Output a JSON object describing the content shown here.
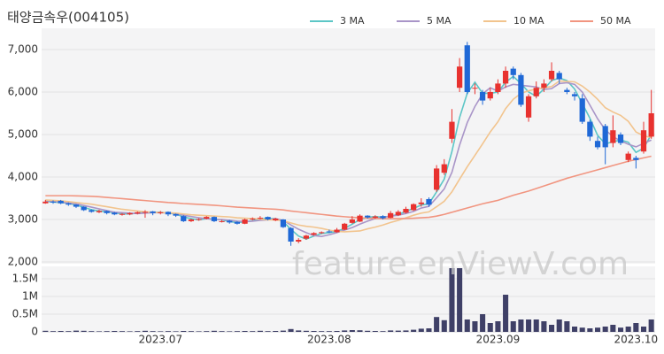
{
  "chart_data": {
    "type": "candlestick",
    "title": "태양금속우(004105)",
    "watermark": "feature.enViewV.com",
    "categories": [
      null,
      null,
      null,
      null,
      null,
      null,
      null,
      null,
      null,
      null,
      null,
      null,
      null,
      null,
      null,
      "2023.07",
      null,
      null,
      null,
      null,
      null,
      null,
      null,
      null,
      null,
      null,
      null,
      null,
      null,
      null,
      null,
      null,
      null,
      null,
      null,
      null,
      null,
      "2023.08",
      null,
      null,
      null,
      null,
      null,
      null,
      null,
      null,
      null,
      null,
      null,
      null,
      null,
      null,
      null,
      null,
      null,
      null,
      null,
      null,
      null,
      "2023.09",
      null,
      null,
      null,
      null,
      null,
      null,
      null,
      null,
      null,
      null,
      null,
      null,
      null,
      null,
      null,
      null,
      null,
      "2023.10",
      null,
      null
    ],
    "open": [
      3380,
      3420,
      3440,
      3380,
      3350,
      3300,
      3220,
      3170,
      3200,
      3160,
      3110,
      3120,
      3140,
      3160,
      3190,
      3150,
      3180,
      3130,
      3080,
      2960,
      2990,
      3020,
      3060,
      2950,
      2970,
      2940,
      2900,
      3000,
      3020,
      3060,
      2980,
      3000,
      2800,
      2480,
      2550,
      2640,
      2690,
      2720,
      2700,
      2760,
      2920,
      2950,
      3090,
      3040,
      3080,
      3040,
      3100,
      3160,
      3220,
      3360,
      3480,
      3700,
      4100,
      4900,
      6100,
      7100,
      6100,
      6000,
      5850,
      6000,
      6200,
      6550,
      6400,
      5400,
      5900,
      6100,
      6300,
      6450,
      6050,
      5950,
      5850,
      5300,
      4850,
      5200,
      4800,
      5000,
      4400,
      4450,
      4600,
      4950
    ],
    "high": [
      3460,
      3450,
      3460,
      3400,
      3360,
      3310,
      3240,
      3230,
      3210,
      3180,
      3150,
      3170,
      3190,
      3220,
      3200,
      3200,
      3190,
      3140,
      3100,
      3020,
      3030,
      3080,
      3070,
      2990,
      2990,
      2960,
      3020,
      3050,
      3080,
      3070,
      3040,
      3010,
      2820,
      2560,
      2640,
      2700,
      2720,
      2760,
      2800,
      2920,
      3080,
      3120,
      3100,
      3100,
      3100,
      3200,
      3220,
      3300,
      3380,
      3500,
      3520,
      4280,
      4420,
      5600,
      6800,
      7180,
      6200,
      6050,
      6100,
      6300,
      6600,
      6600,
      6450,
      5950,
      6250,
      6300,
      6700,
      6500,
      6100,
      6000,
      5950,
      5350,
      4950,
      5250,
      5450,
      5050,
      4600,
      4500,
      5300,
      6050
    ],
    "low": [
      3370,
      3370,
      3360,
      3320,
      3270,
      3200,
      3160,
      3150,
      3120,
      3100,
      3090,
      3100,
      3120,
      3040,
      3100,
      3120,
      3080,
      3060,
      2940,
      2940,
      2970,
      3000,
      2940,
      2930,
      2900,
      2880,
      2890,
      2980,
      3000,
      2980,
      2960,
      2800,
      2380,
      2440,
      2520,
      2620,
      2660,
      2680,
      2690,
      2750,
      2900,
      2940,
      3020,
      3020,
      3000,
      3030,
      3080,
      3140,
      3200,
      3300,
      3300,
      3650,
      4050,
      4800,
      6000,
      5950,
      5950,
      5700,
      5800,
      5950,
      6100,
      6300,
      5650,
      5300,
      5850,
      6000,
      6250,
      6200,
      5950,
      5800,
      5250,
      4850,
      4650,
      4300,
      4700,
      4750,
      4350,
      4200,
      4550,
      4900
    ],
    "close": [
      3420,
      3400,
      3380,
      3350,
      3300,
      3220,
      3180,
      3200,
      3150,
      3120,
      3130,
      3150,
      3170,
      3180,
      3150,
      3170,
      3120,
      3090,
      2960,
      3000,
      3010,
      3060,
      2960,
      2960,
      2930,
      2900,
      3000,
      3020,
      3040,
      3000,
      3020,
      2820,
      2480,
      2520,
      2620,
      2680,
      2700,
      2700,
      2760,
      2900,
      3000,
      3090,
      3050,
      3070,
      3030,
      3150,
      3180,
      3250,
      3360,
      3400,
      3350,
      4200,
      4300,
      5300,
      6600,
      6000,
      6100,
      5800,
      6000,
      6200,
      6500,
      6400,
      5700,
      5900,
      6100,
      6200,
      6500,
      6300,
      6000,
      5900,
      5300,
      4950,
      4700,
      4700,
      5100,
      4800,
      4550,
      4400,
      5100,
      5500
    ],
    "up_color": "#e8322f",
    "down_color": "#1f68d6",
    "series": [
      {
        "name": "3 MA",
        "color": "#5cc6c6",
        "values": [
          3430,
          3410,
          3400,
          3380,
          3340,
          3290,
          3230,
          3200,
          3180,
          3160,
          3130,
          3130,
          3150,
          3170,
          3170,
          3170,
          3150,
          3130,
          3060,
          3020,
          2990,
          3020,
          3010,
          2990,
          2950,
          2930,
          2940,
          2970,
          3020,
          3020,
          3020,
          2950,
          2770,
          2610,
          2540,
          2610,
          2670,
          2690,
          2720,
          2790,
          2890,
          3000,
          3050,
          3070,
          3050,
          3080,
          3120,
          3190,
          3260,
          3340,
          3370,
          3650,
          3950,
          4600,
          5400,
          5970,
          6230,
          5970,
          5970,
          6000,
          6230,
          6370,
          6200,
          6000,
          5900,
          6070,
          6270,
          6330,
          6270,
          6070,
          5730,
          5380,
          4980,
          4780,
          4830,
          4870,
          4820,
          4580,
          4680,
          5000
        ]
      },
      {
        "name": "5 MA",
        "color": "#a995c8",
        "values": [
          3440,
          3430,
          3410,
          3390,
          3370,
          3330,
          3290,
          3250,
          3210,
          3170,
          3160,
          3150,
          3140,
          3150,
          3160,
          3160,
          3160,
          3140,
          3100,
          3070,
          3040,
          3020,
          3000,
          3000,
          2980,
          2960,
          2950,
          2960,
          2980,
          2990,
          3020,
          2980,
          2870,
          2770,
          2690,
          2620,
          2600,
          2640,
          2690,
          2750,
          2810,
          2890,
          2960,
          3020,
          3050,
          3080,
          3100,
          3140,
          3190,
          3270,
          3310,
          3510,
          3720,
          4110,
          4750,
          5280,
          5660,
          5960,
          6100,
          6020,
          6120,
          6180,
          6160,
          6140,
          6120,
          6060,
          6080,
          6200,
          6220,
          6180,
          6000,
          5690,
          5370,
          5110,
          4950,
          4850,
          4770,
          4710,
          4790,
          4870
        ]
      },
      {
        "name": "10 MA",
        "color": "#f2c48e",
        "values": [
          3460,
          3450,
          3440,
          3420,
          3400,
          3380,
          3360,
          3330,
          3300,
          3270,
          3240,
          3220,
          3200,
          3180,
          3170,
          3160,
          3160,
          3150,
          3130,
          3110,
          3100,
          3090,
          3080,
          3070,
          3060,
          3040,
          3030,
          3020,
          3010,
          2990,
          2990,
          2970,
          2920,
          2870,
          2840,
          2820,
          2790,
          2750,
          2720,
          2710,
          2720,
          2730,
          2780,
          2820,
          2870,
          2930,
          2980,
          3040,
          3100,
          3150,
          3180,
          3300,
          3430,
          3650,
          3950,
          4240,
          4510,
          4780,
          5060,
          5300,
          5610,
          5830,
          5970,
          6030,
          6070,
          6100,
          6130,
          6260,
          6250,
          6240,
          6140,
          6000,
          5830,
          5630,
          5530,
          5450,
          5310,
          5060,
          4970,
          4930
        ]
      },
      {
        "name": "50 MA",
        "color": "#f19580",
        "values": [
          3560,
          3560,
          3560,
          3560,
          3555,
          3550,
          3545,
          3535,
          3520,
          3505,
          3490,
          3475,
          3460,
          3445,
          3430,
          3415,
          3400,
          3390,
          3375,
          3365,
          3355,
          3345,
          3335,
          3320,
          3305,
          3290,
          3280,
          3270,
          3260,
          3250,
          3240,
          3225,
          3200,
          3180,
          3160,
          3140,
          3120,
          3100,
          3080,
          3065,
          3050,
          3040,
          3030,
          3025,
          3020,
          3020,
          3020,
          3025,
          3030,
          3040,
          3050,
          3080,
          3120,
          3170,
          3220,
          3270,
          3320,
          3370,
          3410,
          3450,
          3510,
          3570,
          3620,
          3670,
          3730,
          3790,
          3850,
          3910,
          3970,
          4020,
          4070,
          4120,
          4170,
          4220,
          4270,
          4320,
          4370,
          4410,
          4450,
          4490
        ]
      }
    ],
    "ylim": [
      2000,
      7500
    ],
    "yticks": [
      {
        "value": 2000,
        "label": "2,000"
      },
      {
        "value": 3000,
        "label": "3,000"
      },
      {
        "value": 4000,
        "label": "4,000"
      },
      {
        "value": 5000,
        "label": "5,000"
      },
      {
        "value": 6000,
        "label": "6,000"
      },
      {
        "value": 7000,
        "label": "7,000"
      }
    ],
    "volume": {
      "color": "#3f4067",
      "ylim": [
        0,
        1850000
      ],
      "yticks": [
        0,
        {
          "value": 500000,
          "label": "0.5M"
        },
        {
          "value": 1000000,
          "label": "1M"
        },
        {
          "value": 1500000,
          "label": "1.5M"
        }
      ],
      "values": [
        30000,
        20000,
        25000,
        20000,
        35000,
        30000,
        20000,
        15000,
        20000,
        25000,
        20000,
        15000,
        20000,
        30000,
        20000,
        15000,
        20000,
        15000,
        25000,
        20000,
        15000,
        20000,
        30000,
        20000,
        15000,
        20000,
        25000,
        20000,
        30000,
        20000,
        25000,
        35000,
        80000,
        40000,
        30000,
        25000,
        20000,
        20000,
        25000,
        40000,
        50000,
        45000,
        30000,
        25000,
        20000,
        40000,
        35000,
        40000,
        60000,
        90000,
        100000,
        420000,
        330000,
        1800000,
        1800000,
        350000,
        300000,
        500000,
        250000,
        300000,
        1050000,
        300000,
        350000,
        350000,
        350000,
        300000,
        200000,
        350000,
        300000,
        150000,
        120000,
        100000,
        120000,
        150000,
        200000,
        120000,
        150000,
        250000,
        150000,
        350000
      ]
    },
    "grid": true,
    "legend": "top-right"
  }
}
